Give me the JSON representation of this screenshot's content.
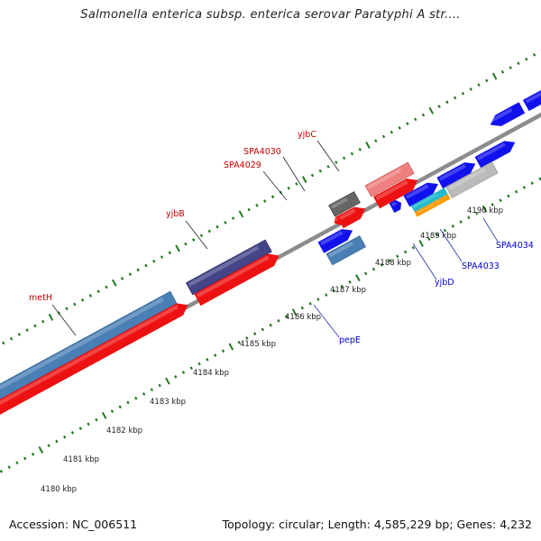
{
  "title": "Salmonella enterica subsp. enterica serovar Paratyphi A str....",
  "footer": {
    "accession": "Accession: NC_006511",
    "summary": "Topology: circular; Length: 4,585,229 bp; Genes: 4,232"
  },
  "colors": {
    "backbone": "#8c8c8c",
    "tick": "#1f7a1f",
    "top_label": "#cc0000",
    "bottom_label": "#0000cc",
    "scale_label": "#222222"
  },
  "scale_labels": [
    "4180 kbp",
    "4181 kbp",
    "4182 kbp",
    "4183 kbp",
    "4184 kbp",
    "4185 kbp",
    "4186 kbp",
    "4187 kbp",
    "4188 kbp",
    "4189 kbp",
    "4190 kbp"
  ],
  "gene_labels_top": [
    "metH",
    "yjbB",
    "SPA4029",
    "SPA4030",
    "yjbC"
  ],
  "gene_labels_bottom": [
    "pepE",
    "yjbD",
    "SPA4033",
    "SPA4034"
  ]
}
